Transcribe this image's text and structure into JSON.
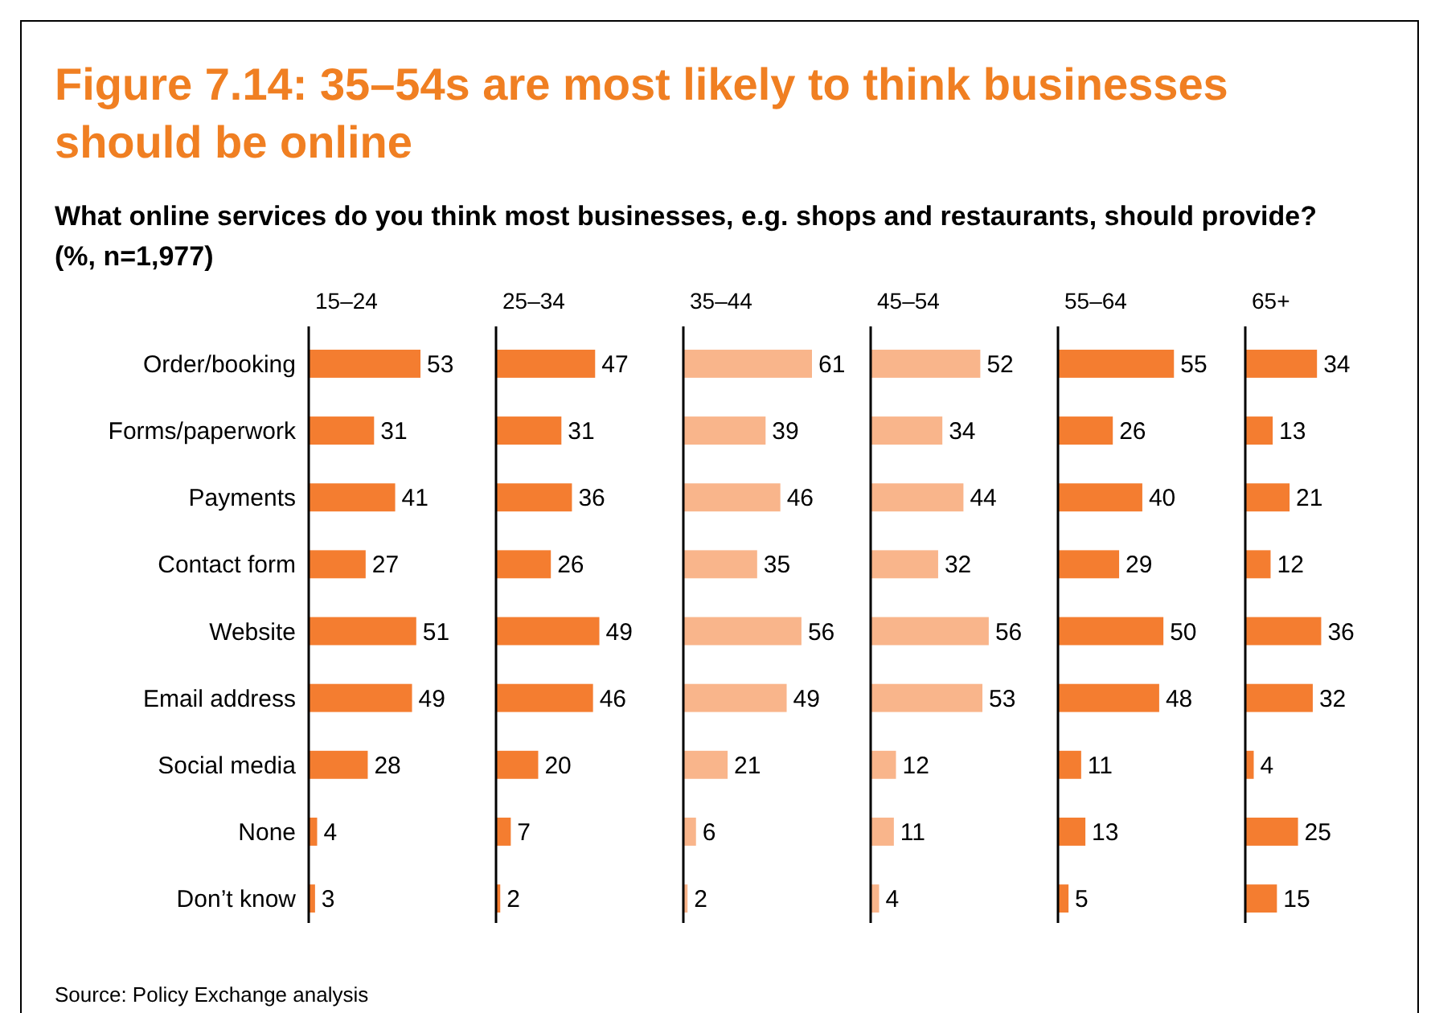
{
  "chart_data": [
    {
      "type": "bar",
      "orientation": "horizontal",
      "title": "Figure 7.14: 35–54s are most likely to think businesses should be online",
      "subtitle": "What online services do you think most businesses, e.g. shops and restaurants, should provide? (%, n=1,977)",
      "annotations": [
        "Source: Policy Exchange analysis"
      ],
      "categories": [
        "Order/booking",
        "Forms/paperwork",
        "Payments",
        "Contact form",
        "Website",
        "Email address",
        "Social media",
        "None",
        "Don’t know"
      ],
      "tick_labels": "y",
      "data_labels": true,
      "series": [
        {
          "name": "15–24",
          "color": "#f47d30",
          "values": [
            53,
            31,
            41,
            27,
            51,
            49,
            28,
            4,
            3
          ]
        }
      ]
    },
    {
      "type": "bar",
      "orientation": "horizontal",
      "categories": [
        null,
        null,
        null,
        null,
        null,
        null,
        null,
        null,
        null
      ],
      "tick_labels": false,
      "data_labels": true,
      "series": [
        {
          "name": "25–34",
          "color": "#f47d30",
          "values": [
            47,
            31,
            36,
            26,
            49,
            46,
            20,
            7,
            2
          ]
        }
      ]
    },
    {
      "type": "bar",
      "orientation": "horizontal",
      "categories": [
        null,
        null,
        null,
        null,
        null,
        null,
        null,
        null,
        null
      ],
      "tick_labels": false,
      "data_labels": true,
      "series": [
        {
          "name": "35–44",
          "color": "#f9b58b",
          "values": [
            61,
            39,
            46,
            35,
            56,
            49,
            21,
            6,
            2
          ]
        }
      ]
    },
    {
      "type": "bar",
      "orientation": "horizontal",
      "categories": [
        null,
        null,
        null,
        null,
        null,
        null,
        null,
        null,
        null
      ],
      "tick_labels": false,
      "data_labels": true,
      "series": [
        {
          "name": "45–54",
          "color": "#f9b58b",
          "values": [
            52,
            34,
            44,
            32,
            56,
            53,
            12,
            11,
            4
          ]
        }
      ]
    },
    {
      "type": "bar",
      "orientation": "horizontal",
      "categories": [
        null,
        null,
        null,
        null,
        null,
        null,
        null,
        null,
        null
      ],
      "tick_labels": false,
      "data_labels": true,
      "series": [
        {
          "name": "55–64",
          "color": "#f47d30",
          "values": [
            55,
            26,
            40,
            29,
            50,
            48,
            11,
            13,
            5
          ]
        }
      ]
    },
    {
      "type": "bar",
      "orientation": "horizontal",
      "categories": [
        null,
        null,
        null,
        null,
        null,
        null,
        null,
        null,
        null
      ],
      "tick_labels": false,
      "data_labels": true,
      "series": [
        {
          "name": "65+",
          "color": "#f47d30",
          "values": [
            34,
            13,
            21,
            12,
            36,
            32,
            4,
            25,
            15
          ]
        }
      ]
    }
  ]
}
